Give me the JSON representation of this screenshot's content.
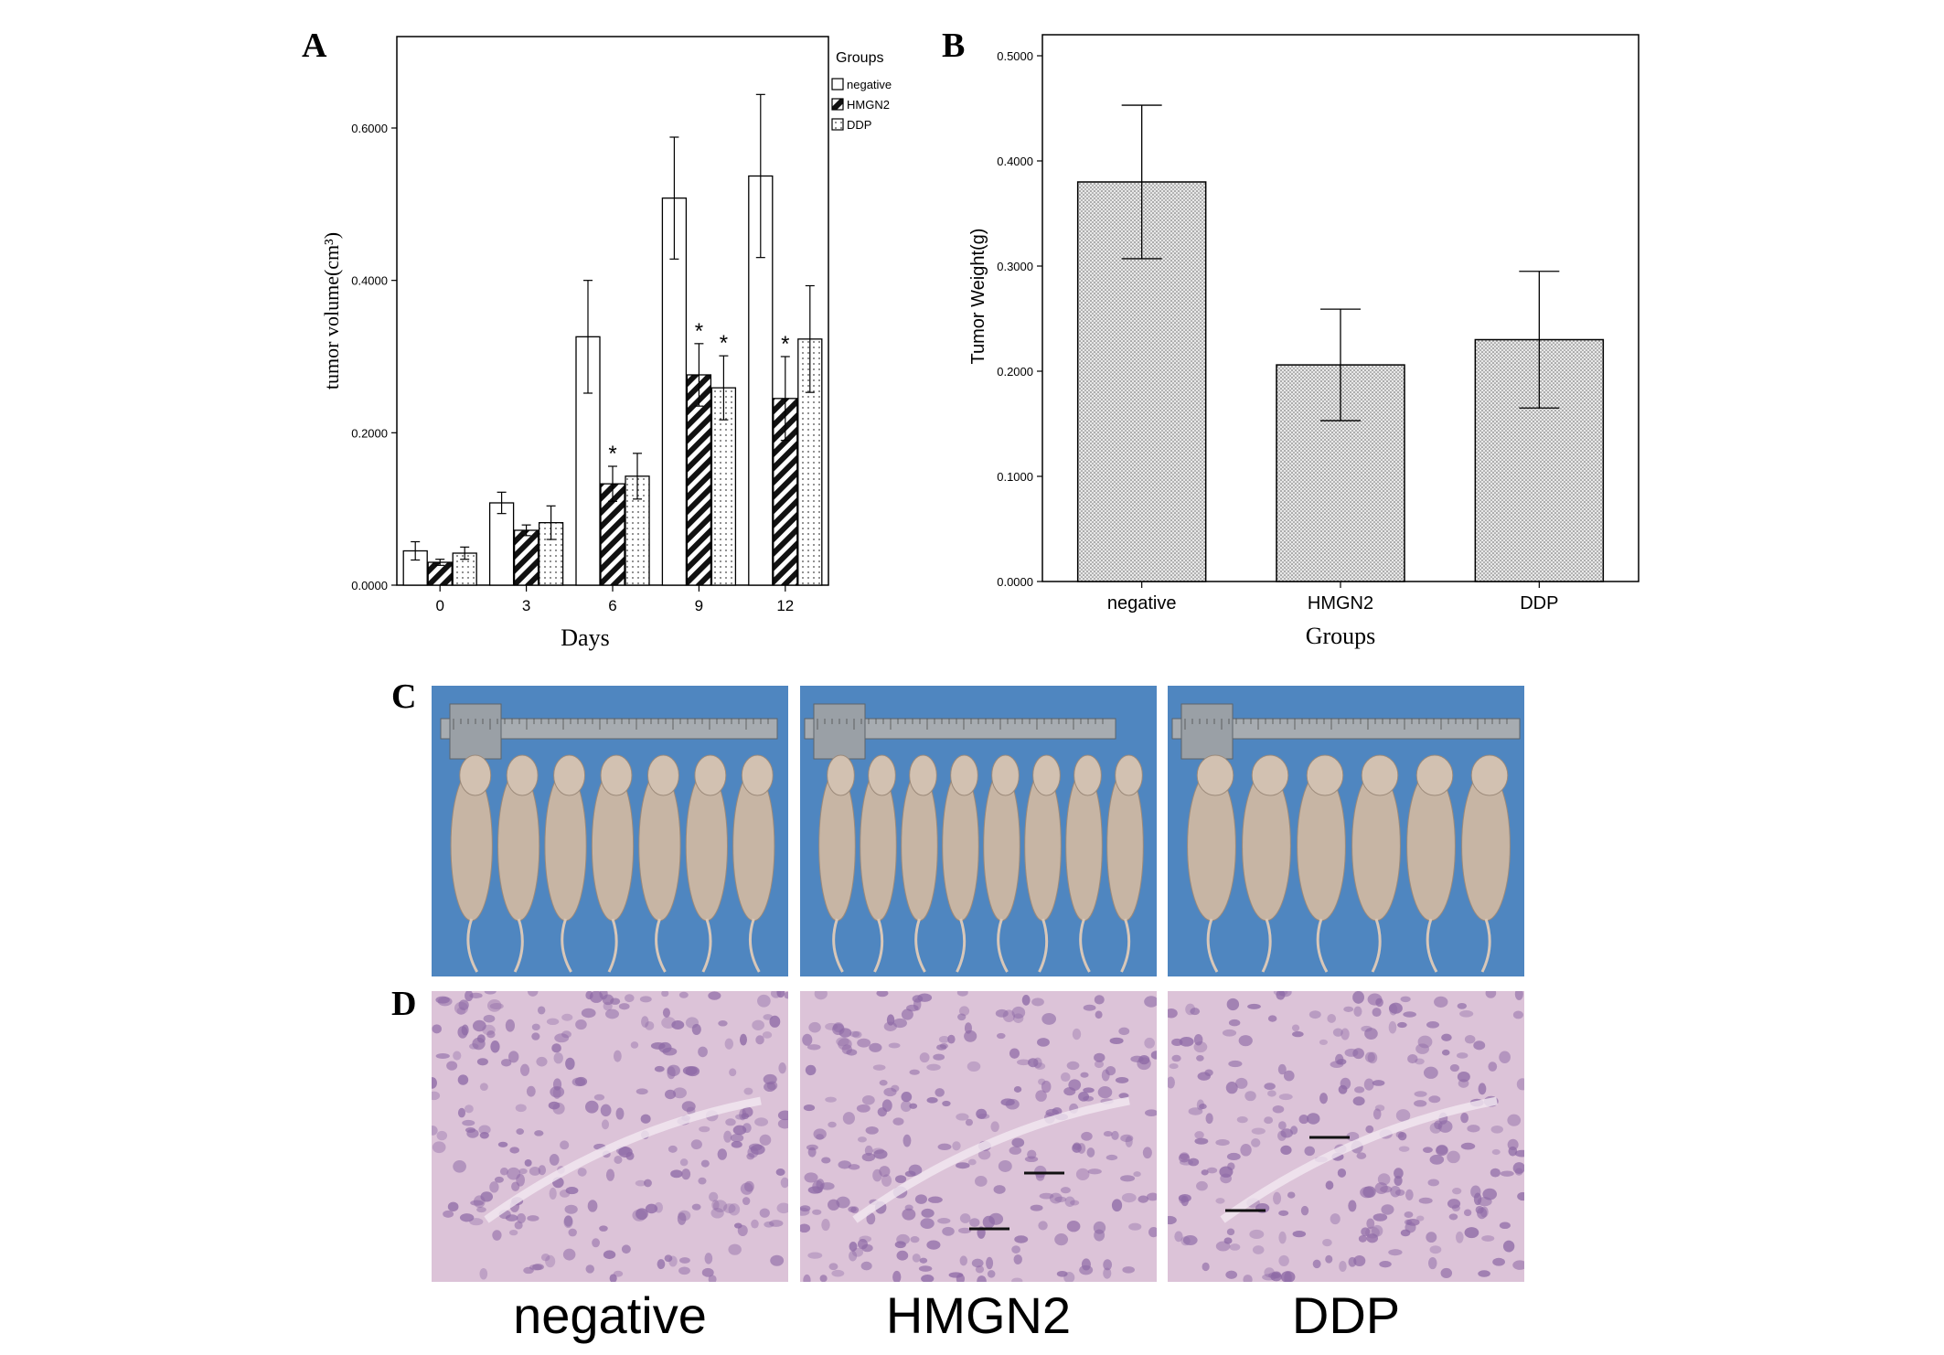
{
  "panels": {
    "a": "A",
    "b": "B",
    "c": "C",
    "d": "D"
  },
  "chart_data": [
    {
      "type": "bar",
      "panel": "A",
      "categories": [
        "0",
        "3",
        "6",
        "9",
        "12"
      ],
      "xlabel": "Days",
      "ylabel": "tumor volume(cm³)",
      "ylim": [
        0,
        0.72
      ],
      "yticks": [
        "0.0000",
        "0.2000",
        "0.4000",
        "0.6000"
      ],
      "legend_title": "Groups",
      "legend_position": "top-right",
      "series": [
        {
          "name": "negative",
          "pattern": "open",
          "values": [
            0.045,
            0.108,
            0.326,
            0.508,
            0.537
          ],
          "errors": [
            0.012,
            0.014,
            0.074,
            0.08,
            0.107
          ],
          "stars": [
            false,
            false,
            false,
            false,
            false
          ]
        },
        {
          "name": "HMGN2",
          "pattern": "hatched",
          "values": [
            0.03,
            0.072,
            0.133,
            0.276,
            0.245
          ],
          "errors": [
            0.004,
            0.007,
            0.023,
            0.041,
            0.055
          ],
          "stars": [
            false,
            false,
            true,
            true,
            true
          ]
        },
        {
          "name": "DDP",
          "pattern": "dotted",
          "values": [
            0.042,
            0.082,
            0.143,
            0.259,
            0.323
          ],
          "errors": [
            0.008,
            0.022,
            0.03,
            0.042,
            0.07
          ],
          "stars": [
            false,
            false,
            false,
            true,
            false
          ]
        }
      ],
      "star_symbol": "*",
      "grid": false
    },
    {
      "type": "bar",
      "panel": "B",
      "categories": [
        "negative",
        "HMGN2",
        "DDP"
      ],
      "values": [
        0.38,
        0.206,
        0.23
      ],
      "errors": [
        0.073,
        0.053,
        0.065
      ],
      "xlabel": "Groups",
      "ylabel": "Tumor Weight(g)",
      "ylim": [
        0,
        0.52
      ],
      "yticks": [
        "0.0000",
        "0.1000",
        "0.2000",
        "0.3000",
        "0.4000",
        "0.5000"
      ],
      "grid": false
    }
  ],
  "photos": {
    "group_labels": [
      "negative",
      "HMGN2",
      "DDP"
    ],
    "colors": {
      "background_blue": "#4f86c0",
      "mouse": "#c7b5a4",
      "ruler": "#a7acb1",
      "tissue": "#dcc3d8",
      "cell": "#8e6aa6"
    }
  }
}
